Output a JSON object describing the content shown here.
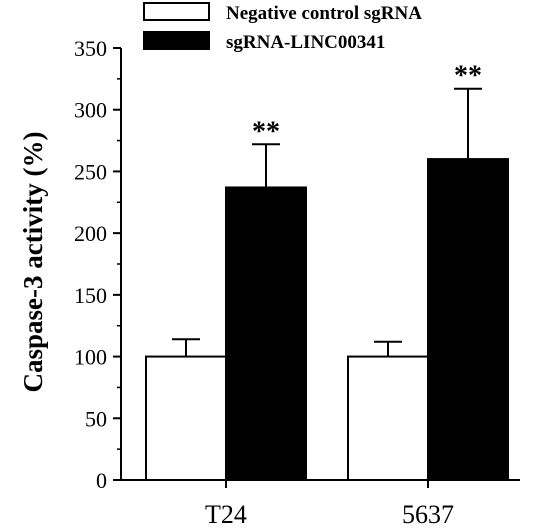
{
  "chart_data": {
    "type": "bar",
    "title": "",
    "xlabel": "",
    "ylabel": "Caspase-3 activity (%)",
    "categories": [
      "T24",
      "5637"
    ],
    "ylim": [
      0,
      350
    ],
    "yticks": [
      "0",
      "50",
      "100",
      "150",
      "200",
      "250",
      "300",
      "350"
    ],
    "grid": false,
    "legend_position": "top",
    "series": [
      {
        "name": "Negative control sgRNA",
        "values": [
          100,
          100
        ],
        "errors": [
          14,
          12
        ],
        "fill": "#ffffff",
        "stroke": "#000000"
      },
      {
        "name": "sgRNA-LINC00341",
        "values": [
          237,
          260
        ],
        "errors": [
          35,
          57
        ],
        "fill": "#000000",
        "stroke": "#000000"
      }
    ],
    "annotations": [
      {
        "text": "**",
        "category": "T24",
        "series": "sgRNA-LINC00341"
      },
      {
        "text": "**",
        "category": "5637",
        "series": "sgRNA-LINC00341"
      }
    ]
  }
}
